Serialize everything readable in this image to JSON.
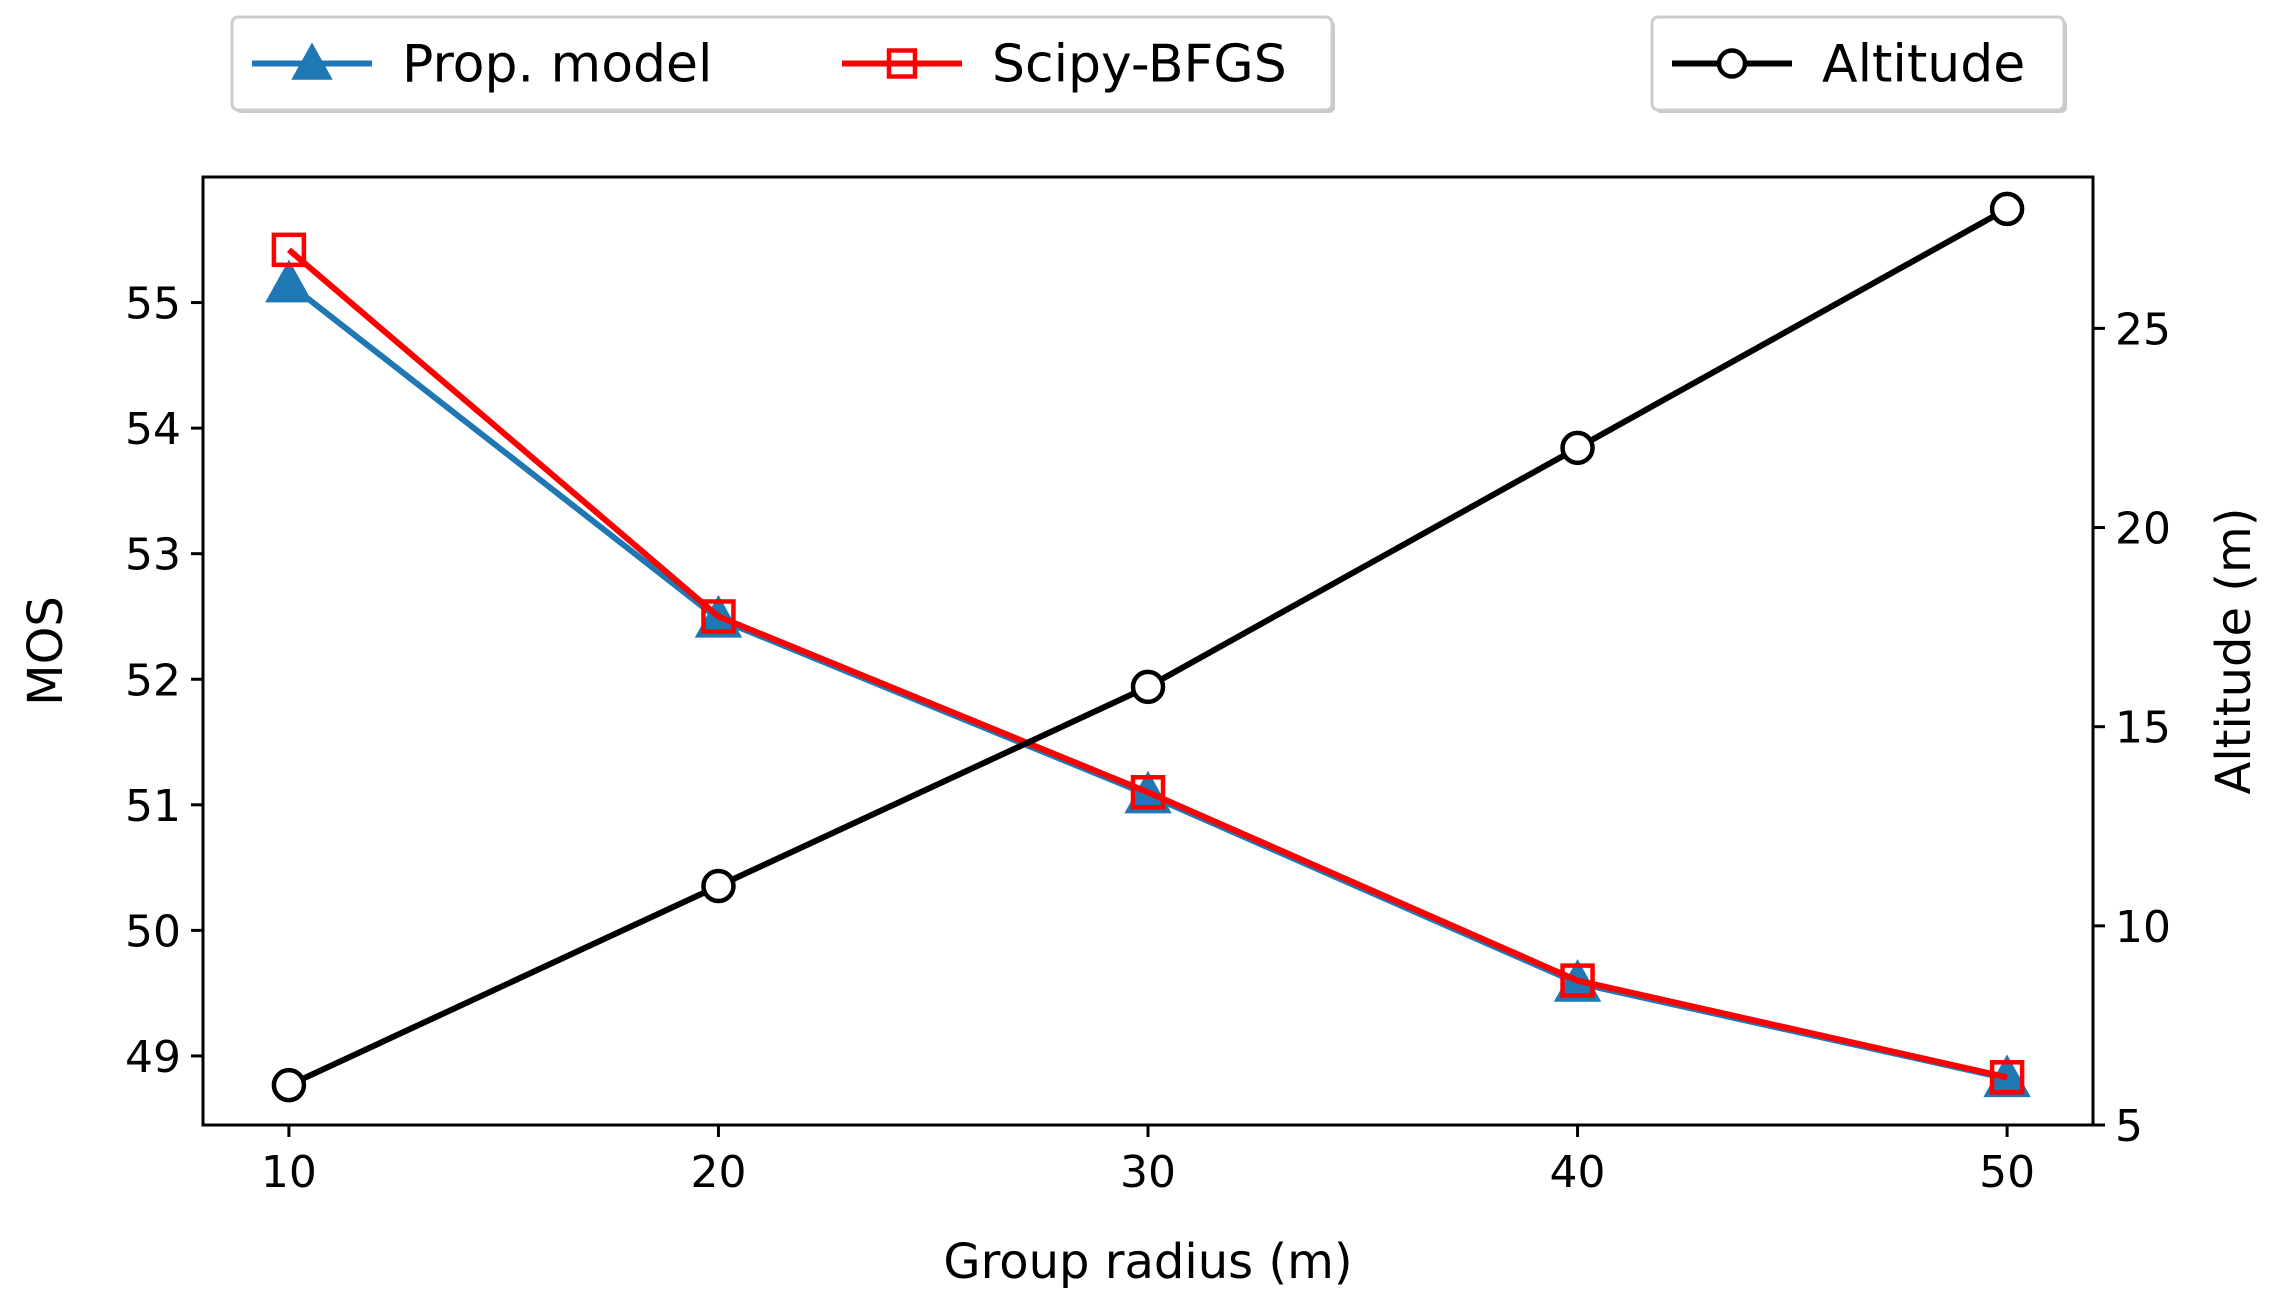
{
  "chart_data": {
    "type": "line",
    "x": [
      10,
      20,
      30,
      40,
      50
    ],
    "xlabel": "Group radius (m)",
    "ylabel": "MOS",
    "y2label": "Altitude (m)",
    "xlim": [
      8,
      52
    ],
    "ylim": [
      48.45,
      56.0
    ],
    "y2lim": [
      5,
      28.8
    ],
    "xticks": [
      10,
      20,
      30,
      40,
      50
    ],
    "yticks": [
      49,
      50,
      51,
      52,
      53,
      54,
      55
    ],
    "y2ticks": [
      5,
      10,
      15,
      20,
      25
    ],
    "grid": false,
    "series": [
      {
        "name": "Prop. model",
        "axis": "left",
        "values": [
          55.15,
          52.48,
          51.08,
          49.58,
          48.82
        ],
        "color": "#1f77b4",
        "marker": "triangle"
      },
      {
        "name": "Scipy-BFGS",
        "axis": "left",
        "values": [
          55.42,
          52.5,
          51.1,
          49.6,
          48.83
        ],
        "color": "#ff0000",
        "marker": "square"
      },
      {
        "name": "Altitude",
        "axis": "right",
        "values": [
          6,
          11,
          16,
          22,
          28
        ],
        "color": "#000000",
        "marker": "circle"
      }
    ],
    "legends": [
      {
        "placement": "top-left",
        "entries": [
          "Prop. model",
          "Scipy-BFGS"
        ]
      },
      {
        "placement": "top-right",
        "entries": [
          "Altitude"
        ]
      }
    ]
  }
}
